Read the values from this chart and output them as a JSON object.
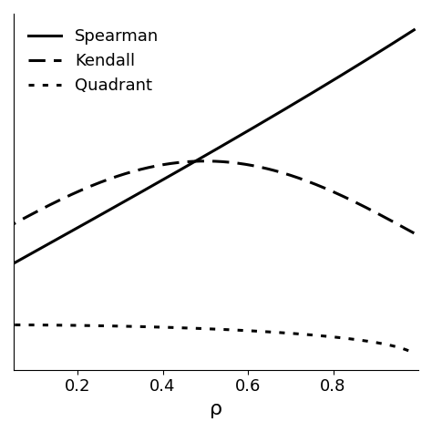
{
  "title": "",
  "xlabel": "ρ",
  "ylabel": "",
  "xlim": [
    0.05,
    1.0
  ],
  "legend_labels": [
    "Spearman",
    "Kendall",
    "Quadrant"
  ],
  "line_color": "#000000",
  "line_width": 2.2,
  "background_color": "#ffffff",
  "tick_label_fontsize": 13,
  "xlabel_fontsize": 16,
  "xticks": [
    0.2,
    0.4,
    0.6,
    0.8
  ],
  "legend_fontsize": 13,
  "legend_loc": "upper left"
}
